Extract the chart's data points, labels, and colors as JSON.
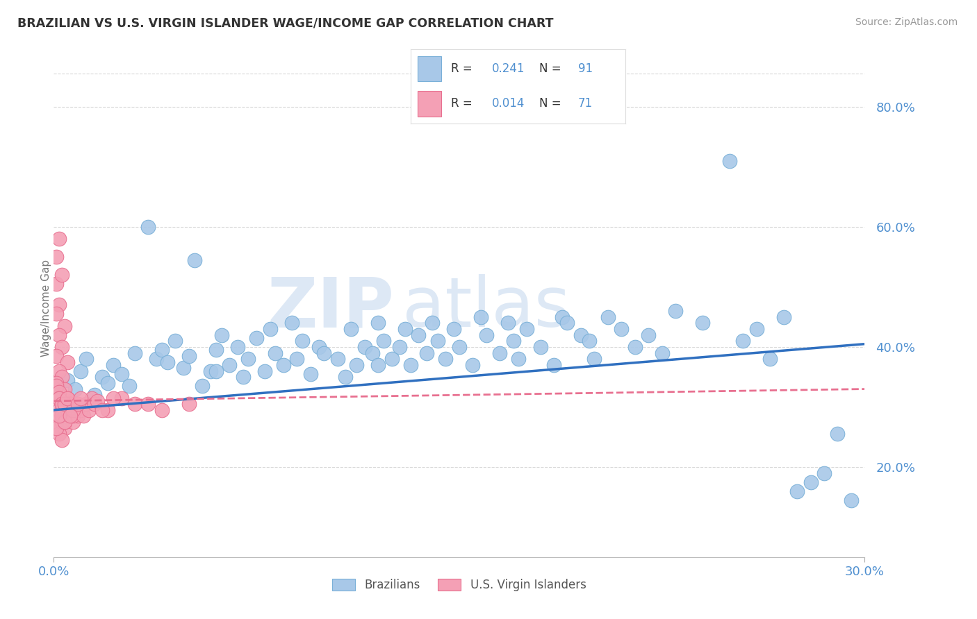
{
  "title": "BRAZILIAN VS U.S. VIRGIN ISLANDER WAGE/INCOME GAP CORRELATION CHART",
  "source": "Source: ZipAtlas.com",
  "ylabel": "Wage/Income Gap",
  "x_min": 0.0,
  "x_max": 0.3,
  "y_min": 0.05,
  "y_max": 0.88,
  "y_ticks": [
    0.2,
    0.4,
    0.6,
    0.8
  ],
  "x_ticks": [
    0.0,
    0.3
  ],
  "blue_R": "0.241",
  "blue_N": "91",
  "pink_R": "0.014",
  "pink_N": "71",
  "blue_color": "#a8c8e8",
  "pink_color": "#f4a0b5",
  "blue_edge_color": "#7ab0d8",
  "pink_edge_color": "#e87090",
  "blue_line_color": "#3070c0",
  "pink_line_color": "#e87090",
  "axis_label_color": "#5090d0",
  "legend_text_color": "#5090d0",
  "watermark_color": "#dde8f5",
  "background_color": "#ffffff",
  "grid_color": "#d8d8d8",
  "blue_scatter_x": [
    0.005,
    0.008,
    0.01,
    0.012,
    0.015,
    0.018,
    0.02,
    0.022,
    0.025,
    0.028,
    0.03,
    0.035,
    0.038,
    0.04,
    0.042,
    0.045,
    0.048,
    0.05,
    0.052,
    0.055,
    0.058,
    0.06,
    0.062,
    0.065,
    0.068,
    0.07,
    0.072,
    0.075,
    0.078,
    0.08,
    0.082,
    0.085,
    0.088,
    0.09,
    0.092,
    0.095,
    0.098,
    0.1,
    0.105,
    0.108,
    0.11,
    0.112,
    0.115,
    0.118,
    0.12,
    0.122,
    0.125,
    0.128,
    0.13,
    0.132,
    0.135,
    0.138,
    0.14,
    0.142,
    0.145,
    0.148,
    0.15,
    0.155,
    0.158,
    0.16,
    0.165,
    0.168,
    0.17,
    0.172,
    0.175,
    0.18,
    0.185,
    0.188,
    0.19,
    0.195,
    0.198,
    0.2,
    0.205,
    0.21,
    0.215,
    0.22,
    0.225,
    0.23,
    0.24,
    0.25,
    0.255,
    0.26,
    0.265,
    0.27,
    0.275,
    0.28,
    0.285,
    0.29,
    0.295,
    0.06,
    0.12
  ],
  "blue_scatter_y": [
    0.345,
    0.33,
    0.36,
    0.38,
    0.32,
    0.35,
    0.34,
    0.37,
    0.355,
    0.335,
    0.39,
    0.6,
    0.38,
    0.395,
    0.375,
    0.41,
    0.365,
    0.385,
    0.545,
    0.335,
    0.36,
    0.395,
    0.42,
    0.37,
    0.4,
    0.35,
    0.38,
    0.415,
    0.36,
    0.43,
    0.39,
    0.37,
    0.44,
    0.38,
    0.41,
    0.355,
    0.4,
    0.39,
    0.38,
    0.35,
    0.43,
    0.37,
    0.4,
    0.39,
    0.44,
    0.41,
    0.38,
    0.4,
    0.43,
    0.37,
    0.42,
    0.39,
    0.44,
    0.41,
    0.38,
    0.43,
    0.4,
    0.37,
    0.45,
    0.42,
    0.39,
    0.44,
    0.41,
    0.38,
    0.43,
    0.4,
    0.37,
    0.45,
    0.44,
    0.42,
    0.41,
    0.38,
    0.45,
    0.43,
    0.4,
    0.42,
    0.39,
    0.46,
    0.44,
    0.71,
    0.41,
    0.43,
    0.38,
    0.45,
    0.16,
    0.175,
    0.19,
    0.255,
    0.145,
    0.36,
    0.37
  ],
  "pink_scatter_x": [
    0.001,
    0.002,
    0.001,
    0.003,
    0.002,
    0.001,
    0.004,
    0.002,
    0.003,
    0.001,
    0.005,
    0.002,
    0.003,
    0.001,
    0.004,
    0.002,
    0.001,
    0.003,
    0.005,
    0.002,
    0.001,
    0.004,
    0.002,
    0.003,
    0.001,
    0.005,
    0.002,
    0.004,
    0.003,
    0.001,
    0.006,
    0.002,
    0.004,
    0.003,
    0.007,
    0.002,
    0.005,
    0.003,
    0.008,
    0.004,
    0.006,
    0.002,
    0.009,
    0.005,
    0.003,
    0.007,
    0.004,
    0.01,
    0.006,
    0.002,
    0.008,
    0.004,
    0.011,
    0.007,
    0.012,
    0.005,
    0.013,
    0.009,
    0.014,
    0.006,
    0.015,
    0.01,
    0.02,
    0.016,
    0.025,
    0.018,
    0.03,
    0.022,
    0.035,
    0.04,
    0.05
  ],
  "pink_scatter_y": [
    0.55,
    0.58,
    0.505,
    0.52,
    0.47,
    0.455,
    0.435,
    0.42,
    0.4,
    0.385,
    0.375,
    0.36,
    0.35,
    0.34,
    0.33,
    0.32,
    0.315,
    0.305,
    0.295,
    0.285,
    0.275,
    0.265,
    0.255,
    0.245,
    0.335,
    0.315,
    0.295,
    0.285,
    0.275,
    0.265,
    0.305,
    0.325,
    0.285,
    0.295,
    0.275,
    0.315,
    0.305,
    0.285,
    0.295,
    0.275,
    0.305,
    0.315,
    0.285,
    0.295,
    0.305,
    0.285,
    0.275,
    0.295,
    0.305,
    0.285,
    0.295,
    0.305,
    0.285,
    0.295,
    0.305,
    0.315,
    0.295,
    0.305,
    0.315,
    0.285,
    0.305,
    0.315,
    0.295,
    0.31,
    0.315,
    0.295,
    0.305,
    0.315,
    0.305,
    0.295,
    0.305
  ],
  "blue_trend_x": [
    0.0,
    0.3
  ],
  "blue_trend_y": [
    0.295,
    0.405
  ],
  "pink_trend_x": [
    0.0,
    0.3
  ],
  "pink_trend_y": [
    0.31,
    0.33
  ]
}
